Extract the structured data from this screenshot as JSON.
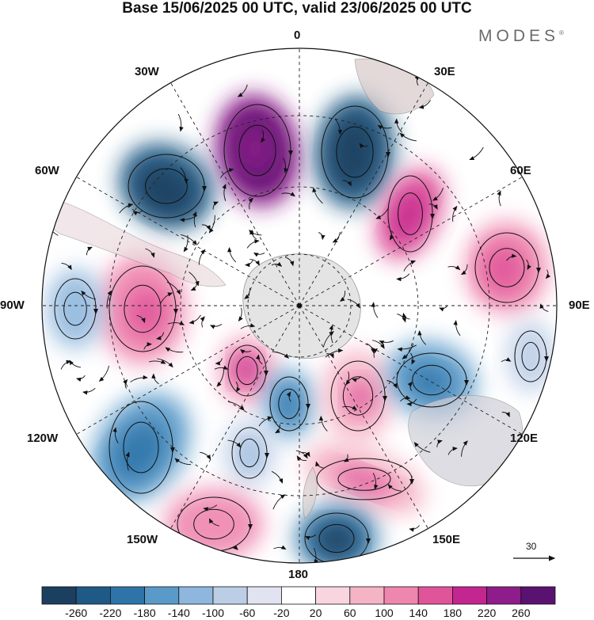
{
  "title": "Base 15/06/2025 00 UTC, valid 23/06/2025 00 UTC",
  "brand": "MODES",
  "brand_mark": "®",
  "longitude_labels": [
    "0",
    "30E",
    "60E",
    "90E",
    "120E",
    "150E",
    "180",
    "150W",
    "120W",
    "90W",
    "60W",
    "30W"
  ],
  "reference_vector_label": "30",
  "colorbar": {
    "ticks": [
      "-260",
      "-220",
      "-180",
      "-140",
      "-100",
      "-60",
      "-20",
      "20",
      "60",
      "100",
      "140",
      "180",
      "220",
      "260"
    ],
    "colors": [
      "#1b3f5f",
      "#1f5a86",
      "#2e74a8",
      "#5a9ac9",
      "#8fb7dd",
      "#bccde6",
      "#e1e3f0",
      "#ffffff",
      "#f9d6df",
      "#f5b3c6",
      "#ef86ad",
      "#e0559a",
      "#c3268f",
      "#8e1c8a",
      "#5a1270"
    ]
  }
}
